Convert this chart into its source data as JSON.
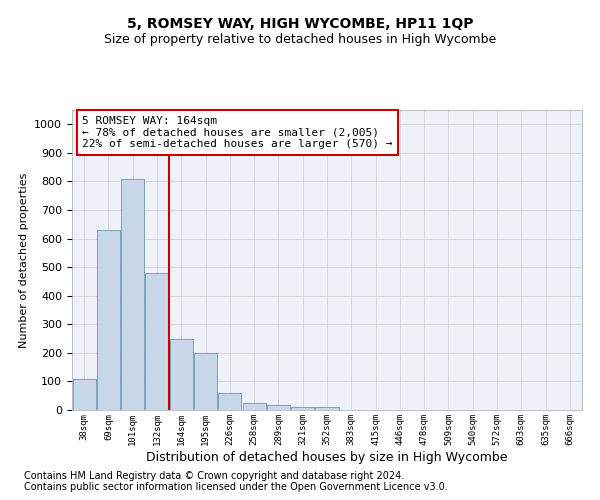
{
  "title": "5, ROMSEY WAY, HIGH WYCOMBE, HP11 1QP",
  "subtitle": "Size of property relative to detached houses in High Wycombe",
  "xlabel": "Distribution of detached houses by size in High Wycombe",
  "ylabel": "Number of detached properties",
  "footnote1": "Contains HM Land Registry data © Crown copyright and database right 2024.",
  "footnote2": "Contains public sector information licensed under the Open Government Licence v3.0.",
  "annotation_line1": "5 ROMSEY WAY: 164sqm",
  "annotation_line2": "← 78% of detached houses are smaller (2,005)",
  "annotation_line3": "22% of semi-detached houses are larger (570) →",
  "categories": [
    "38sqm",
    "69sqm",
    "101sqm",
    "132sqm",
    "164sqm",
    "195sqm",
    "226sqm",
    "258sqm",
    "289sqm",
    "321sqm",
    "352sqm",
    "383sqm",
    "415sqm",
    "446sqm",
    "478sqm",
    "509sqm",
    "540sqm",
    "572sqm",
    "603sqm",
    "635sqm",
    "666sqm"
  ],
  "values": [
    110,
    630,
    810,
    480,
    250,
    200,
    60,
    25,
    18,
    10,
    10,
    0,
    0,
    0,
    0,
    0,
    0,
    0,
    0,
    0,
    0
  ],
  "bar_color": "#c8d8e8",
  "bar_edge_color": "#5588aa",
  "vline_color": "#cc0000",
  "ylim": [
    0,
    1050
  ],
  "yticks": [
    0,
    100,
    200,
    300,
    400,
    500,
    600,
    700,
    800,
    900,
    1000
  ],
  "grid_color": "#cccccc",
  "bg_color": "#eef2f8",
  "box_edge_color": "#cc0000",
  "title_fontsize": 10,
  "subtitle_fontsize": 9,
  "annotation_fontsize": 8,
  "footnote_fontsize": 7,
  "ylabel_fontsize": 8,
  "xlabel_fontsize": 9
}
